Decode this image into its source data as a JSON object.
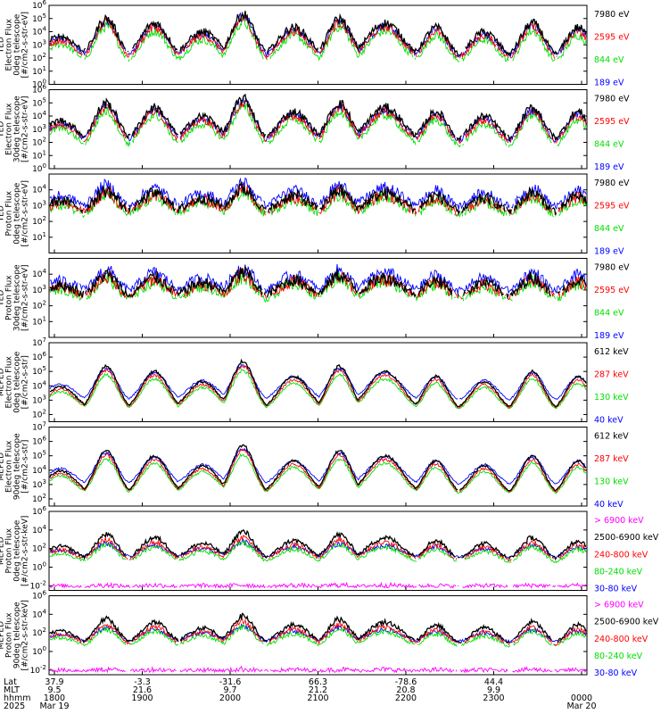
{
  "colors": {
    "blue": "#0000ff",
    "green": "#00e000",
    "red": "#ff0000",
    "black": "#000000",
    "magenta": "#ff00ff"
  },
  "chart_data": [
    {
      "type": "line",
      "instrument": "TED",
      "ylabel": [
        "TED",
        "Electron Flux",
        "0deg telescope",
        "[#/cm2-s-str-eV]"
      ],
      "ylim_log10": [
        0,
        6
      ],
      "y_ticks": [
        {
          "label": "10",
          "exp": "0"
        },
        {
          "label": "10",
          "exp": "1"
        },
        {
          "label": "10",
          "exp": "2"
        },
        {
          "label": "10",
          "exp": "3"
        },
        {
          "label": "10",
          "exp": "4"
        },
        {
          "label": "10",
          "exp": "5"
        },
        {
          "label": "10",
          "exp": "6"
        }
      ],
      "series": [
        {
          "name": "7980 eV",
          "color": "black"
        },
        {
          "name": "2595 eV",
          "color": "red"
        },
        {
          "name": "844 eV",
          "color": "green"
        },
        {
          "name": "189 eV",
          "color": "blue"
        }
      ]
    },
    {
      "type": "line",
      "instrument": "TED",
      "ylabel": [
        "TED",
        "Electron Flux",
        "30deg telescope",
        "[#/cm2-s-str-eV]"
      ],
      "ylim_log10": [
        0,
        6
      ],
      "y_ticks": [
        {
          "label": "10",
          "exp": "0"
        },
        {
          "label": "10",
          "exp": "1"
        },
        {
          "label": "10",
          "exp": "2"
        },
        {
          "label": "10",
          "exp": "3"
        },
        {
          "label": "10",
          "exp": "4"
        },
        {
          "label": "10",
          "exp": "5"
        },
        {
          "label": "10",
          "exp": "6"
        }
      ],
      "series": [
        {
          "name": "7980 eV",
          "color": "black"
        },
        {
          "name": "2595 eV",
          "color": "red"
        },
        {
          "name": "844 eV",
          "color": "green"
        },
        {
          "name": "189 eV",
          "color": "blue"
        }
      ]
    },
    {
      "type": "line",
      "instrument": "TED",
      "ylabel": [
        "TED",
        "Proton Flux",
        "0deg telescope",
        "[#/cm2-s-str-eV]"
      ],
      "ylim_log10": [
        0,
        5
      ],
      "y_ticks": [
        {
          "label": "10",
          "exp": "1"
        },
        {
          "label": "10",
          "exp": "2"
        },
        {
          "label": "10",
          "exp": "3"
        },
        {
          "label": "10",
          "exp": "4"
        }
      ],
      "series": [
        {
          "name": "7980 eV",
          "color": "black"
        },
        {
          "name": "2595 eV",
          "color": "red"
        },
        {
          "name": "844 eV",
          "color": "green"
        },
        {
          "name": "189 eV",
          "color": "blue"
        }
      ]
    },
    {
      "type": "line",
      "instrument": "TED",
      "ylabel": [
        "TED",
        "Proton Flux",
        "30deg telescope",
        "[#/cm2-s-str-eV]"
      ],
      "ylim_log10": [
        0,
        5
      ],
      "y_ticks": [
        {
          "label": "10",
          "exp": "1"
        },
        {
          "label": "10",
          "exp": "2"
        },
        {
          "label": "10",
          "exp": "3"
        },
        {
          "label": "10",
          "exp": "4"
        }
      ],
      "series": [
        {
          "name": "7980 eV",
          "color": "black"
        },
        {
          "name": "2595 eV",
          "color": "red"
        },
        {
          "name": "844 eV",
          "color": "green"
        },
        {
          "name": "189 eV",
          "color": "blue"
        }
      ]
    },
    {
      "type": "line",
      "instrument": "MEPED",
      "ylabel": [
        "MEPED",
        "Electron Flux",
        "0deg telescope",
        "[#/cm2-s-str]"
      ],
      "ylim_log10": [
        1.5,
        7
      ],
      "y_ticks": [
        {
          "label": "10",
          "exp": "2"
        },
        {
          "label": "10",
          "exp": "3"
        },
        {
          "label": "10",
          "exp": "4"
        },
        {
          "label": "10",
          "exp": "5"
        },
        {
          "label": "10",
          "exp": "6"
        },
        {
          "label": "10",
          "exp": "7"
        }
      ],
      "series": [
        {
          "name": "612 keV",
          "color": "black"
        },
        {
          "name": "287 keV",
          "color": "red"
        },
        {
          "name": "130 keV",
          "color": "green"
        },
        {
          "name": "40 keV",
          "color": "blue"
        }
      ]
    },
    {
      "type": "line",
      "instrument": "MEPED",
      "ylabel": [
        "MEPED",
        "Electron Flux",
        "90deg telescope",
        "[#/cm2-s-str]"
      ],
      "ylim_log10": [
        1.5,
        7
      ],
      "y_ticks": [
        {
          "label": "10",
          "exp": "2"
        },
        {
          "label": "10",
          "exp": "3"
        },
        {
          "label": "10",
          "exp": "4"
        },
        {
          "label": "10",
          "exp": "5"
        },
        {
          "label": "10",
          "exp": "6"
        },
        {
          "label": "10",
          "exp": "7"
        }
      ],
      "series": [
        {
          "name": "612 keV",
          "color": "black"
        },
        {
          "name": "287 keV",
          "color": "red"
        },
        {
          "name": "130 keV",
          "color": "green"
        },
        {
          "name": "40 keV",
          "color": "blue"
        }
      ]
    },
    {
      "type": "line",
      "instrument": "MEPED",
      "ylabel": [
        "MEPED",
        "Proton Flux",
        "0deg telescope",
        "[#/cm2-s-str-keV]"
      ],
      "ylim_log10": [
        -2.5,
        6
      ],
      "y_ticks": [
        {
          "label": "10",
          "exp": "-2"
        },
        {
          "label": "10",
          "exp": "0"
        },
        {
          "label": "10",
          "exp": "2"
        },
        {
          "label": "10",
          "exp": "4"
        },
        {
          "label": "10",
          "exp": "6"
        }
      ],
      "series": [
        {
          "name": "> 6900 keV",
          "color": "magenta"
        },
        {
          "name": "2500-6900 keV",
          "color": "black"
        },
        {
          "name": "240-800 keV",
          "color": "red"
        },
        {
          "name": "80-240 keV",
          "color": "green"
        },
        {
          "name": "30-80 keV",
          "color": "blue"
        }
      ]
    },
    {
      "type": "line",
      "instrument": "MEPED",
      "ylabel": [
        "MEPED",
        "Proton Flux",
        "90deg telescope",
        "[#/cm2-s-str-keV]"
      ],
      "ylim_log10": [
        -2.5,
        6
      ],
      "y_ticks": [
        {
          "label": "10",
          "exp": "-2"
        },
        {
          "label": "10",
          "exp": "0"
        },
        {
          "label": "10",
          "exp": "2"
        },
        {
          "label": "10",
          "exp": "4"
        },
        {
          "label": "10",
          "exp": "6"
        }
      ],
      "series": [
        {
          "name": "> 6900 keV",
          "color": "magenta"
        },
        {
          "name": "2500-6900 keV",
          "color": "black"
        },
        {
          "name": "240-800 keV",
          "color": "red"
        },
        {
          "name": "80-240 keV",
          "color": "green"
        },
        {
          "name": "30-80 keV",
          "color": "blue"
        }
      ]
    }
  ],
  "x_axis": {
    "row_labels": [
      "Lat",
      "MLT",
      "hhmm",
      "2025"
    ],
    "columns": [
      {
        "lat": "37.9",
        "mlt": "9.5",
        "hhmm": "1800",
        "date": "Mar 19"
      },
      {
        "lat": "-3.3",
        "mlt": "21.6",
        "hhmm": "1900",
        "date": ""
      },
      {
        "lat": "-31.6",
        "mlt": "9.7",
        "hhmm": "2000",
        "date": ""
      },
      {
        "lat": "66.3",
        "mlt": "21.2",
        "hhmm": "2100",
        "date": ""
      },
      {
        "lat": "-78.6",
        "mlt": "20.8",
        "hhmm": "2200",
        "date": ""
      },
      {
        "lat": "44.4",
        "mlt": "9.9",
        "hhmm": "2300",
        "date": ""
      },
      {
        "lat": "",
        "mlt": "",
        "hhmm": "0000",
        "date": "Mar 20"
      }
    ]
  },
  "passes": [
    {
      "c": 0.02,
      "w": 0.04,
      "a": 0.5
    },
    {
      "c": 0.105,
      "w": 0.03,
      "a": 0.9
    },
    {
      "c": 0.195,
      "w": 0.035,
      "a": 0.8
    },
    {
      "c": 0.285,
      "w": 0.04,
      "a": 0.6
    },
    {
      "c": 0.36,
      "w": 0.03,
      "a": 1.0
    },
    {
      "c": 0.455,
      "w": 0.04,
      "a": 0.7
    },
    {
      "c": 0.54,
      "w": 0.03,
      "a": 0.9
    },
    {
      "c": 0.625,
      "w": 0.045,
      "a": 0.8
    },
    {
      "c": 0.72,
      "w": 0.03,
      "a": 0.7
    },
    {
      "c": 0.81,
      "w": 0.035,
      "a": 0.6
    },
    {
      "c": 0.9,
      "w": 0.03,
      "a": 0.8
    },
    {
      "c": 0.985,
      "w": 0.03,
      "a": 0.7
    }
  ]
}
